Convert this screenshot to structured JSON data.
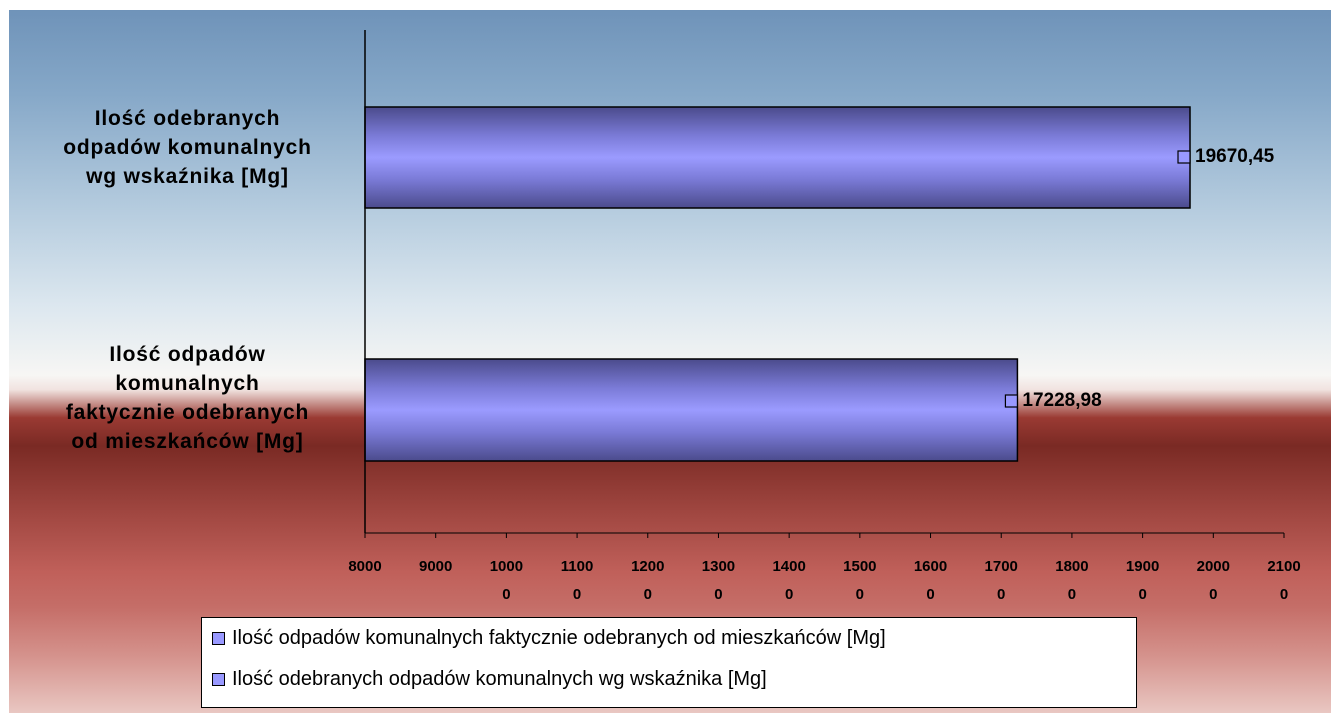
{
  "chart_data": {
    "type": "bar",
    "orientation": "horizontal",
    "categories": [
      "Ilość odebranych odpadów komunalnych wg wskaźnika [Mg]",
      "Ilość odpadów komunalnych faktycznie odebranych od mieszkańców [Mg]"
    ],
    "category_lines": [
      [
        "Ilość odebranych",
        "odpadów komunalnych",
        "wg wskaźnika [Mg]"
      ],
      [
        "Ilość odpadów",
        "komunalnych",
        "faktycznie odebranych",
        "od mieszkańców [Mg]"
      ]
    ],
    "values": [
      19670.45,
      17228.98
    ],
    "data_labels": [
      "19670,45",
      "17228,98"
    ],
    "xlim": [
      8000,
      21000
    ],
    "x_ticks": [
      8000,
      9000,
      10000,
      11000,
      12000,
      13000,
      14000,
      15000,
      16000,
      17000,
      18000,
      19000,
      20000,
      21000
    ],
    "x_tick_labels": [
      [
        "8000"
      ],
      [
        "9000"
      ],
      [
        "1000",
        "0"
      ],
      [
        "1100",
        "0"
      ],
      [
        "1200",
        "0"
      ],
      [
        "1300",
        "0"
      ],
      [
        "1400",
        "0"
      ],
      [
        "1500",
        "0"
      ],
      [
        "1600",
        "0"
      ],
      [
        "1700",
        "0"
      ],
      [
        "1800",
        "0"
      ],
      [
        "1900",
        "0"
      ],
      [
        "2000",
        "0"
      ],
      [
        "2100",
        "0"
      ]
    ],
    "bar_color": "#9999ff",
    "grid": false,
    "legend": {
      "position": "bottom",
      "entries": [
        "Ilość odpadów komunalnych faktycznie odebranych od mieszkańców [Mg]",
        "Ilość odebranych odpadów komunalnych wg wskaźnika [Mg]"
      ]
    }
  }
}
